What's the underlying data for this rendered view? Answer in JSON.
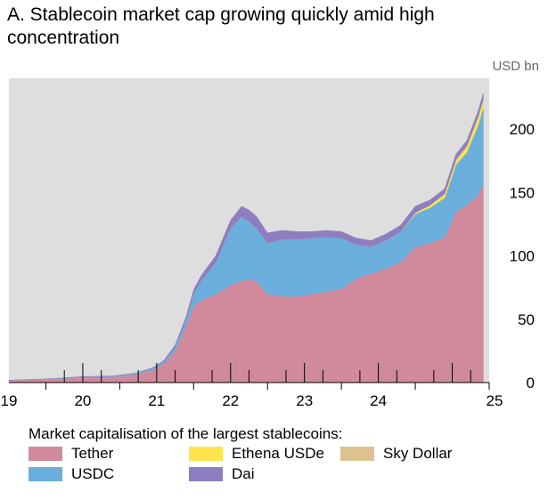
{
  "chart_data": {
    "type": "area",
    "title": "A. Stablecoin market cap growing quickly amid high concentration",
    "unit_label": "USD bn",
    "xlabel": "",
    "ylabel": "USD bn",
    "x_tick_labels": [
      "19",
      "20",
      "21",
      "22",
      "23",
      "24",
      "25"
    ],
    "x_ticks": [
      2019,
      2020,
      2021,
      2022,
      2023,
      2024,
      2025
    ],
    "xlim": [
      2018.5,
      2025.0
    ],
    "y_ticks": [
      0,
      50,
      100,
      150,
      200
    ],
    "ylim": [
      0,
      240
    ],
    "grid": false,
    "legend_title": "Market capitalisation of the largest stablecoins:",
    "legend_position": "bottom",
    "x": [
      2018.5,
      2019.0,
      2019.5,
      2019.9,
      2020.2,
      2020.45,
      2020.6,
      2020.75,
      2020.9,
      2021.0,
      2021.1,
      2021.3,
      2021.5,
      2021.65,
      2021.75,
      2021.85,
      2022.0,
      2022.2,
      2022.4,
      2022.6,
      2022.8,
      2023.0,
      2023.2,
      2023.4,
      2023.6,
      2023.8,
      2024.0,
      2024.2,
      2024.4,
      2024.55,
      2024.7,
      2024.85,
      2024.92
    ],
    "series": [
      {
        "name": "Tether",
        "color": "#d08a9c",
        "values": [
          1.8,
          2.5,
          4,
          4.5,
          6,
          10,
          15,
          25,
          45,
          60,
          65,
          70,
          77,
          80,
          82,
          80,
          70,
          68,
          68,
          70,
          72,
          74,
          82,
          86,
          90,
          95,
          107,
          110,
          115,
          135,
          140,
          148,
          157
        ]
      },
      {
        "name": "USDC",
        "color": "#6aaedc",
        "values": [
          0,
          0.3,
          0.5,
          0.5,
          1,
          1.2,
          1.5,
          3,
          5,
          10,
          15,
          25,
          45,
          51,
          45,
          42,
          40,
          45,
          45,
          44,
          43,
          40,
          27,
          21,
          22,
          24,
          26,
          28,
          31,
          37,
          42,
          55,
          60
        ]
      },
      {
        "name": "Ethena USDe",
        "color": "#ffe34d",
        "values": [
          0,
          0,
          0,
          0,
          0,
          0,
          0,
          0,
          0,
          0,
          0,
          0,
          0,
          0,
          0,
          0,
          0,
          0,
          0,
          0,
          0,
          0,
          0,
          0,
          0,
          0,
          1,
          2,
          3,
          3,
          4,
          6,
          5
        ]
      },
      {
        "name": "Sky Dollar",
        "color": "#dcc28e",
        "values": [
          0,
          0,
          0,
          0,
          0,
          0,
          0,
          0,
          0,
          0,
          0,
          0,
          0,
          0,
          0,
          0,
          0,
          0,
          0,
          0,
          0,
          0,
          0,
          0,
          0,
          0,
          0,
          0,
          0,
          1,
          1,
          1,
          2
        ]
      },
      {
        "name": "Dai",
        "color": "#8e7ec1",
        "values": [
          0.1,
          0.1,
          0.2,
          0.2,
          0.3,
          0.5,
          1,
          1.5,
          2,
          3,
          4,
          5,
          6,
          8,
          9,
          9,
          8,
          7,
          6,
          5,
          5,
          5,
          5,
          5,
          5,
          5,
          5,
          4,
          4,
          4,
          4,
          4,
          4
        ]
      }
    ]
  }
}
